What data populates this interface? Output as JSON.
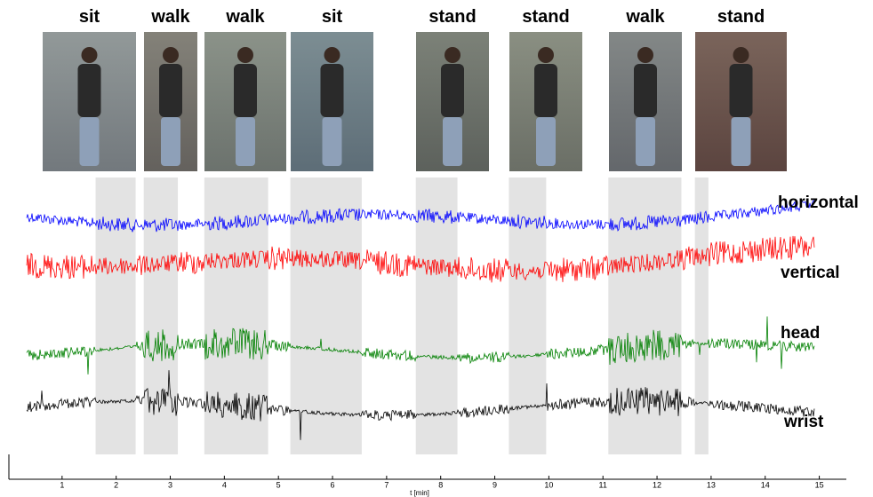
{
  "chart_data": {
    "type": "timeline",
    "activities": [
      {
        "label": "sit",
        "start": 1.62,
        "end": 2.36
      },
      {
        "label": "walk",
        "start": 2.51,
        "end": 3.14
      },
      {
        "label": "walk",
        "start": 3.63,
        "end": 4.81
      },
      {
        "label": "sit",
        "start": 5.22,
        "end": 6.54
      },
      {
        "label": "stand",
        "start": 7.54,
        "end": 8.31
      },
      {
        "label": "stand",
        "start": 9.26,
        "end": 9.95
      },
      {
        "label": "walk",
        "start": 11.1,
        "end": 12.45
      },
      {
        "label": "stand",
        "start": 12.7,
        "end": 12.95
      }
    ],
    "signals": [
      {
        "name": "horizontal",
        "color": "#0000ff"
      },
      {
        "name": "vertical",
        "color": "#ff0000"
      },
      {
        "name": "head",
        "color": "#008000"
      },
      {
        "name": "wrist",
        "color": "#000000"
      }
    ],
    "xlabel": "t [min]",
    "xlim": [
      0,
      15.5
    ],
    "xticks": [
      1,
      2,
      3,
      4,
      5,
      6,
      7,
      8,
      9,
      10,
      11,
      12,
      13,
      14,
      15
    ]
  }
}
